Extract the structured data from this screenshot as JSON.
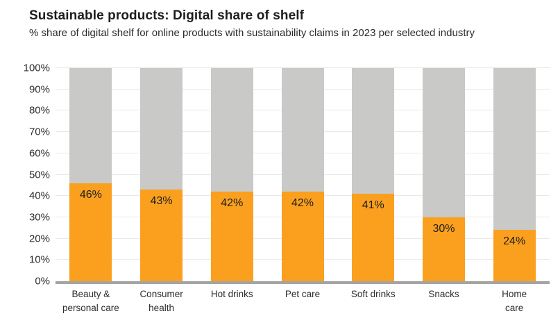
{
  "header": {
    "title": "Sustainable products: Digital share of shelf",
    "subtitle": "% share of digital shelf for online products with sustainability claims in 2023 per selected industry"
  },
  "colors": {
    "claim_bar": "#FAA01E",
    "remainder_bar": "#C9C9C7",
    "gridline": "#E9E9E7",
    "axis_line": "#A4A4A2",
    "text": "#1D1D1B"
  },
  "chart_data": {
    "type": "bar",
    "stacked": true,
    "title": "Sustainable products: Digital share of shelf",
    "subtitle": "% share of digital shelf for online products with sustainability claims in 2023 per selected industry",
    "categories": [
      "Beauty & personal care",
      "Consumer health",
      "Hot drinks",
      "Pet care",
      "Soft drinks",
      "Snacks",
      "Home care"
    ],
    "category_label_lines": [
      [
        "Beauty &",
        "personal care"
      ],
      [
        "Consumer",
        "health"
      ],
      [
        "Hot drinks"
      ],
      [
        "Pet care"
      ],
      [
        "Soft drinks"
      ],
      [
        "Snacks"
      ],
      [
        "Home",
        "care"
      ]
    ],
    "values": [
      46,
      43,
      42,
      42,
      41,
      30,
      24
    ],
    "value_labels": [
      "46%",
      "43%",
      "42%",
      "42%",
      "41%",
      "30%",
      "24%"
    ],
    "remainder_values": [
      54,
      57,
      58,
      58,
      59,
      70,
      76
    ],
    "xlabel": "",
    "ylabel": "",
    "ylim": [
      0,
      100
    ],
    "ytick_values": [
      0,
      10,
      20,
      30,
      40,
      50,
      60,
      70,
      80,
      90,
      100
    ],
    "ytick_labels": [
      "0%",
      "10%",
      "20%",
      "30%",
      "40%",
      "50%",
      "60%",
      "70%",
      "80%",
      "90%",
      "100%"
    ],
    "grid": true,
    "legend": false
  }
}
